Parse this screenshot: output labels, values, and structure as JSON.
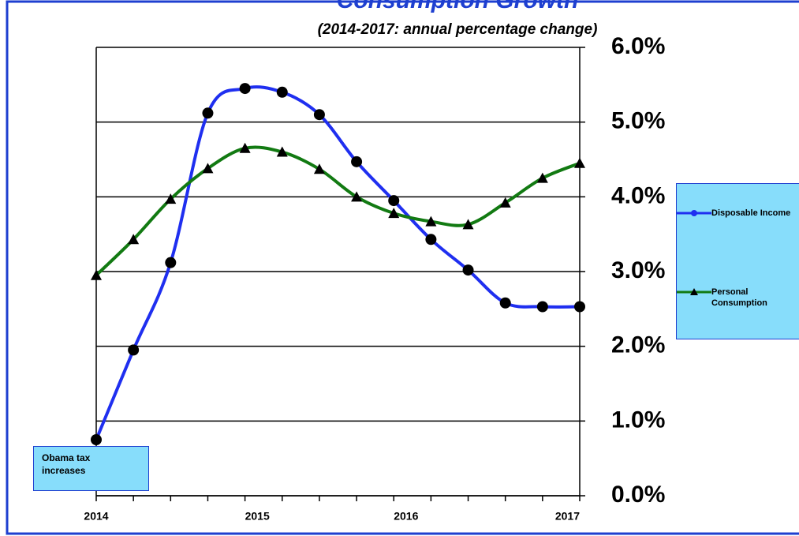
{
  "chart_data": {
    "type": "line",
    "title": "Consumption Growth",
    "subtitle": "(2014-2017: annual percentage change)",
    "categories": [
      "2014",
      null,
      null,
      null,
      "2015",
      null,
      null,
      null,
      "2016",
      null,
      null,
      null,
      null,
      "2017"
    ],
    "series": [
      {
        "name": "Disposable Income",
        "color": "#1f2ff0",
        "marker": "circle",
        "values": [
          0.75,
          1.95,
          3.12,
          5.12,
          5.45,
          5.4,
          5.1,
          4.47,
          3.95,
          3.43,
          3.02,
          2.58,
          2.53,
          2.53
        ]
      },
      {
        "name": "Personal Consumption",
        "color": "#127a12",
        "marker": "triangle",
        "values": [
          2.95,
          3.43,
          3.97,
          4.38,
          4.65,
          4.6,
          4.37,
          4.0,
          3.78,
          3.67,
          3.63,
          3.92,
          4.25,
          4.45
        ]
      }
    ],
    "ylim": [
      0,
      6
    ],
    "yticks": [
      {
        "value": 0,
        "label": "0.0%"
      },
      {
        "value": 1,
        "label": "1.0%"
      },
      {
        "value": 2,
        "label": "2.0%"
      },
      {
        "value": 3,
        "label": "3.0%"
      },
      {
        "value": 4,
        "label": "4.0%"
      },
      {
        "value": 5,
        "label": "5.0%"
      },
      {
        "value": 6,
        "label": "6.0%"
      }
    ],
    "grid": true,
    "legend": "right",
    "annotations": [
      "Obama tax increases"
    ]
  }
}
